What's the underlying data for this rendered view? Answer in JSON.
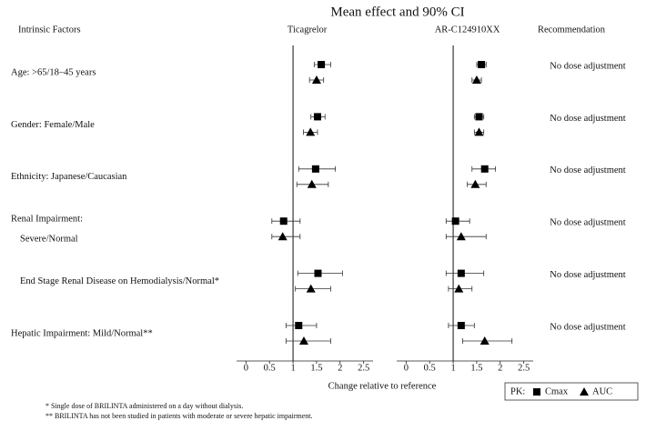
{
  "chart_data": {
    "type": "forest",
    "title": "Mean effect and 90% CI",
    "row_header": "Intrinsic Factors",
    "recommendation_header": "Recommendation",
    "categories": [
      "Age: >65/18–45 years",
      "Gender: Female/Male",
      "Ethnicity: Japanese/Caucasian",
      "Severe/Normal",
      "End Stage Renal Disease on Hemodialysis/Normal*",
      "Hepatic Impairment: Mild/Normal**"
    ],
    "group_label": "Renal Impairment:",
    "recommendations": [
      "No dose adjustment",
      "No dose adjustment",
      "No dose adjustment",
      "No dose adjustment",
      "No dose adjustment",
      "No dose adjustment"
    ],
    "panels": [
      {
        "title": "Ticagrelor",
        "series": [
          {
            "name": "Cmax",
            "marker": "square",
            "color": "#000000",
            "values": [
              1.6,
              1.52,
              1.48,
              0.8,
              1.53,
              1.12
            ],
            "lower": [
              1.45,
              1.38,
              1.12,
              0.55,
              1.1,
              0.85
            ],
            "upper": [
              1.8,
              1.68,
              1.9,
              1.15,
              2.05,
              1.5
            ]
          },
          {
            "name": "AUC",
            "marker": "triangle",
            "color": "#000000",
            "values": [
              1.5,
              1.37,
              1.4,
              0.78,
              1.38,
              1.23
            ],
            "lower": [
              1.35,
              1.22,
              1.08,
              0.55,
              1.05,
              0.85
            ],
            "upper": [
              1.65,
              1.52,
              1.75,
              1.15,
              1.8,
              1.8
            ]
          }
        ]
      },
      {
        "title": "AR-C124910XX",
        "series": [
          {
            "name": "Cmax",
            "marker": "square",
            "color": "#000000",
            "values": [
              1.6,
              1.55,
              1.67,
              1.05,
              1.17,
              1.17
            ],
            "lower": [
              1.5,
              1.45,
              1.4,
              0.85,
              0.85,
              0.9
            ],
            "upper": [
              1.7,
              1.65,
              1.9,
              1.35,
              1.65,
              1.45
            ]
          },
          {
            "name": "AUC",
            "marker": "triangle",
            "color": "#000000",
            "values": [
              1.5,
              1.55,
              1.47,
              1.17,
              1.12,
              1.67
            ],
            "lower": [
              1.4,
              1.45,
              1.3,
              0.85,
              0.9,
              1.2
            ],
            "upper": [
              1.6,
              1.65,
              1.7,
              1.7,
              1.4,
              2.25
            ]
          }
        ]
      }
    ],
    "reference": 1,
    "xlim": [
      -0.2,
      2.7
    ],
    "xticks": [
      0,
      0.5,
      1,
      1.5,
      2,
      2.5
    ],
    "xlabel": "Change relative to reference",
    "legend_title": "PK:",
    "footnotes": [
      "* Single dose of BRILINTA administered on a day without dialysis.",
      "** BRILINTA has not been studied in patients with moderate or severe hepatic impairment."
    ]
  }
}
